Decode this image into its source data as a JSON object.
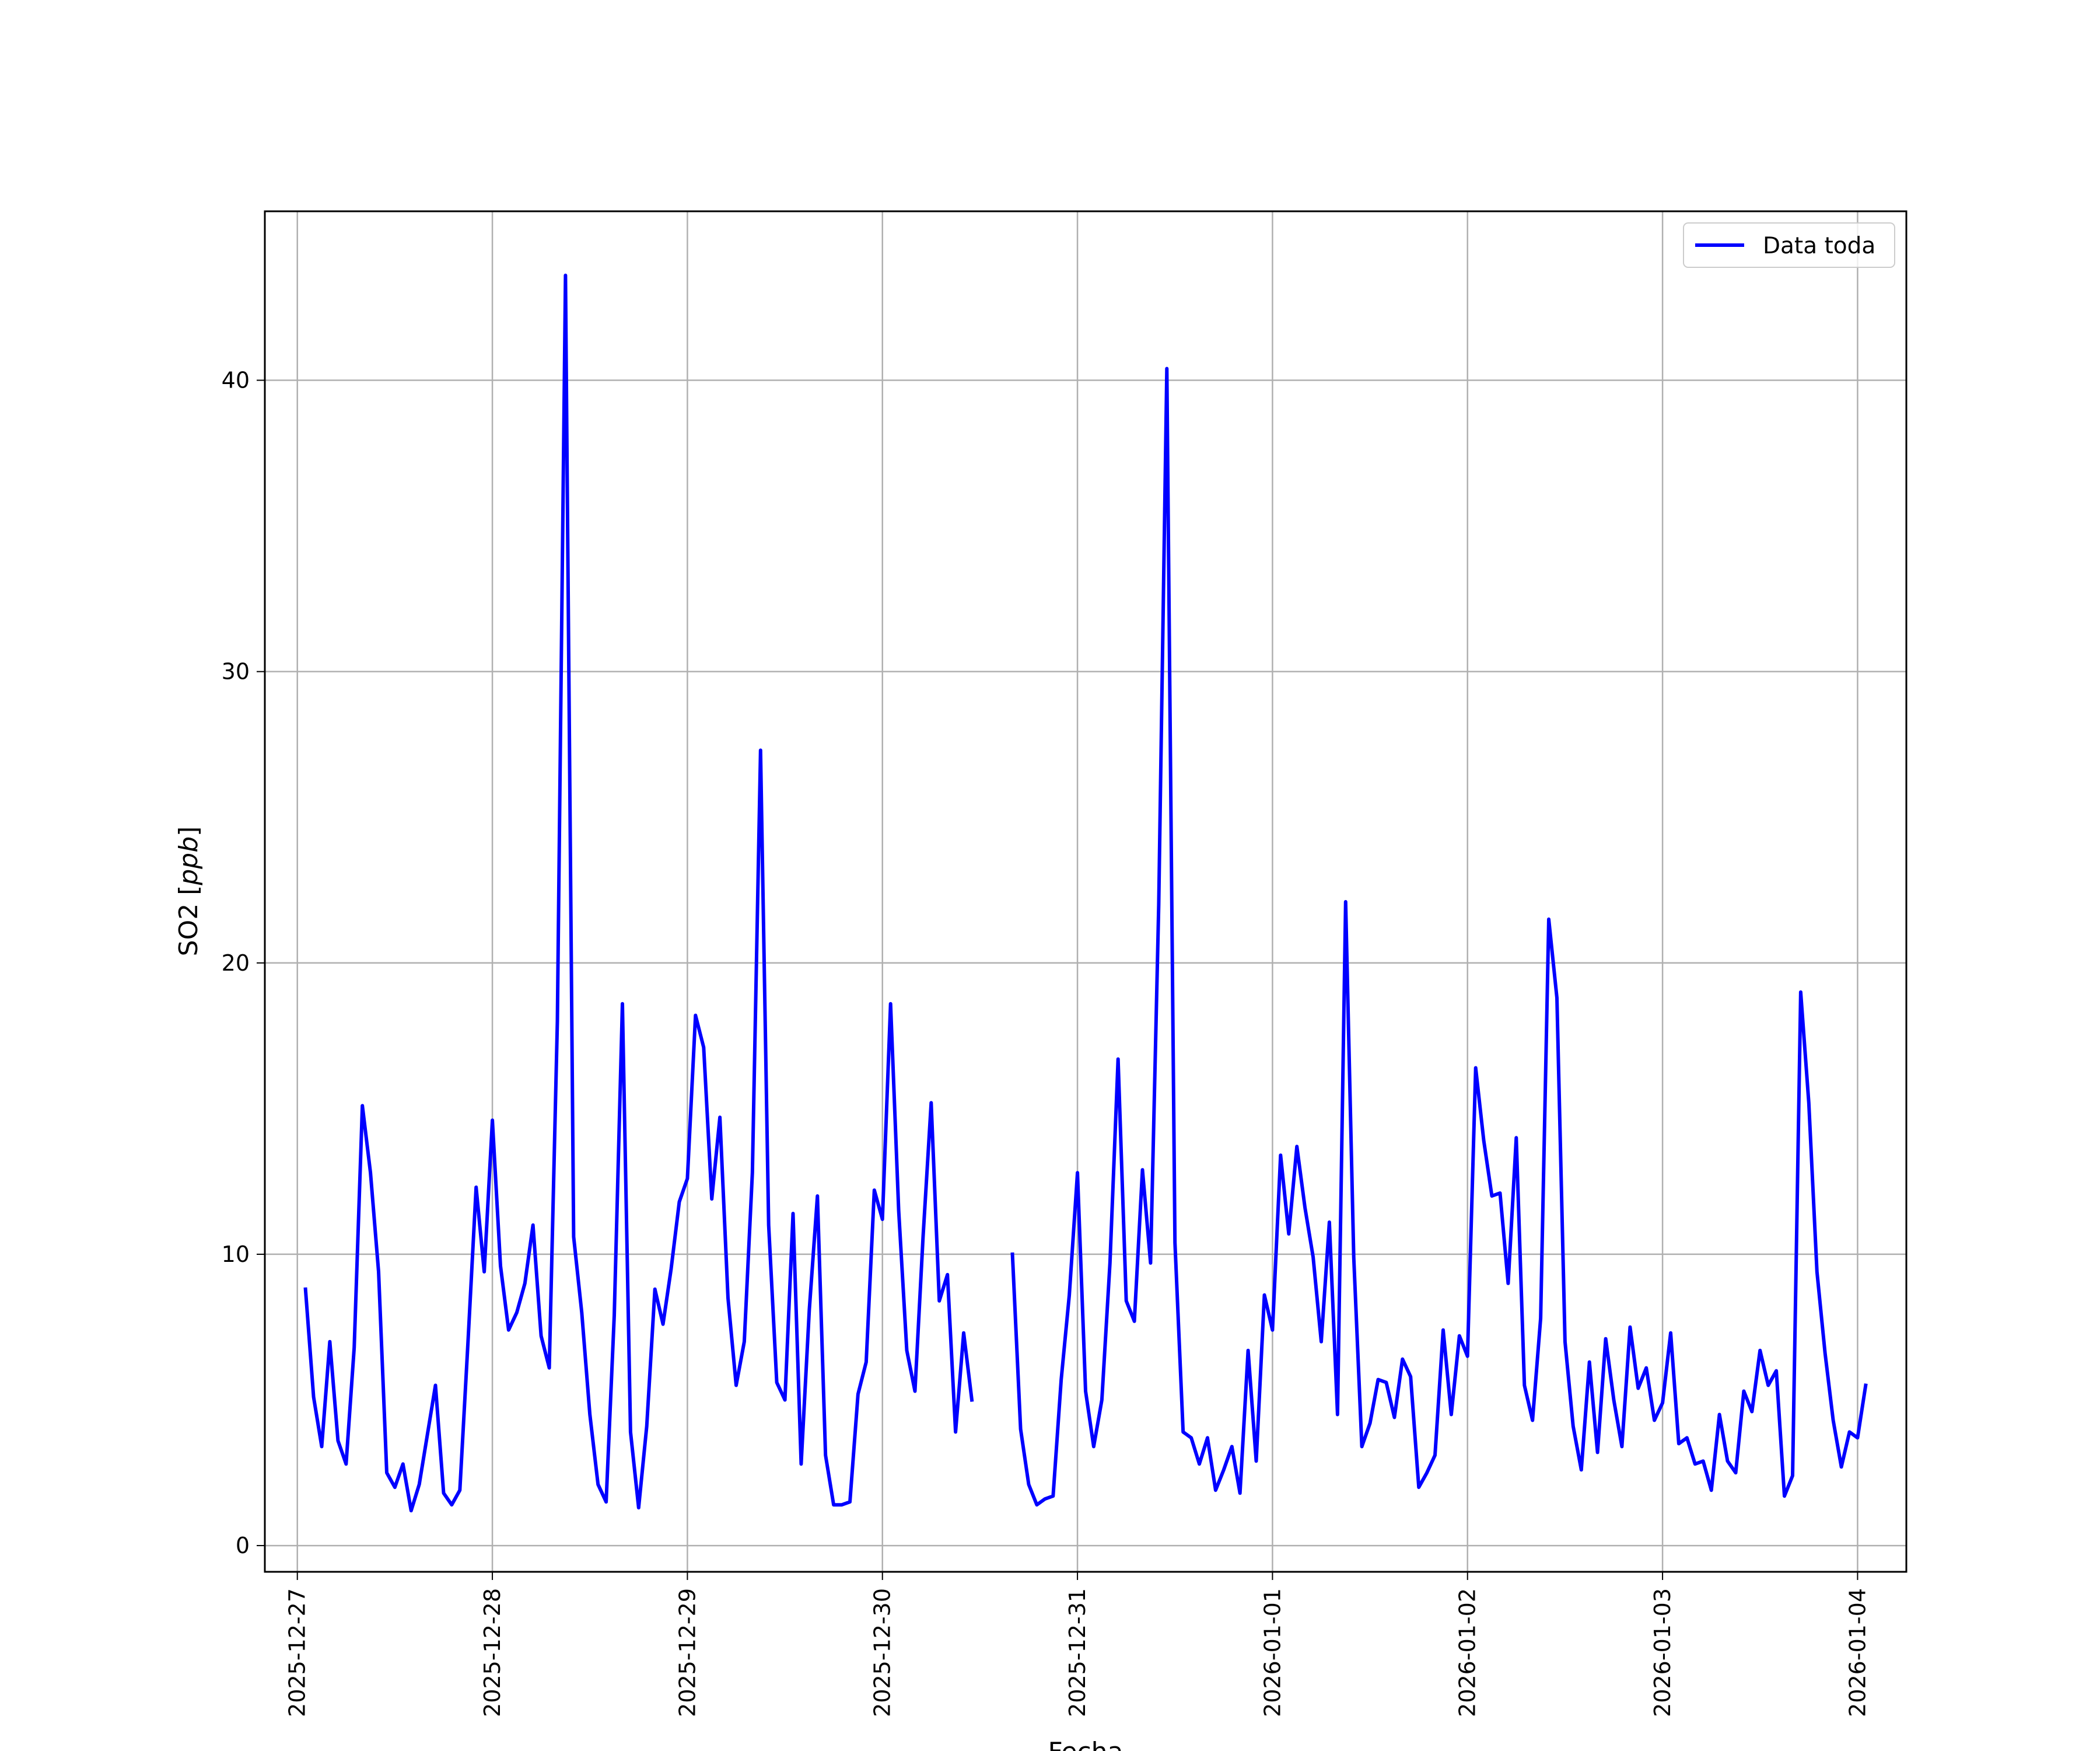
{
  "chart_data": {
    "type": "line",
    "title": "",
    "xlabel": "Fecha",
    "ylabel_prefix": "SO2 [",
    "ylabel_unit": "ppb",
    "ylabel_suffix": "]",
    "x_range": [
      "2025-12-26T20:00",
      "2026-01-04T06:00"
    ],
    "ylim": [
      -0.9,
      45.8
    ],
    "x_ticks": [
      "2025-12-27",
      "2025-12-28",
      "2025-12-29",
      "2025-12-30",
      "2025-12-31",
      "2026-01-01",
      "2026-01-02",
      "2026-01-03",
      "2026-01-04"
    ],
    "y_ticks": [
      0,
      10,
      20,
      30,
      40
    ],
    "grid": true,
    "legend_position": "top-right",
    "series": [
      {
        "name": "Data toda",
        "color": "#0000ff",
        "start": "2025-12-27T01:00",
        "interval_hours": 1,
        "values": [
          8.8,
          5.1,
          3.4,
          7.0,
          3.6,
          2.8,
          6.8,
          15.1,
          12.8,
          9.4,
          2.5,
          2.0,
          2.8,
          1.2,
          2.1,
          3.8,
          5.5,
          1.8,
          1.4,
          1.9,
          7.0,
          12.3,
          9.4,
          14.6,
          9.6,
          7.4,
          8.0,
          9.0,
          11.0,
          7.2,
          6.1,
          18.0,
          43.6,
          10.6,
          8.0,
          4.5,
          2.1,
          1.5,
          7.9,
          18.6,
          3.9,
          1.3,
          4.1,
          8.8,
          7.6,
          9.5,
          11.8,
          12.6,
          18.2,
          17.1,
          11.9,
          14.7,
          8.5,
          5.5,
          7.0,
          12.8,
          27.3,
          11.0,
          5.6,
          5.0,
          11.4,
          2.8,
          8.1,
          12.0,
          3.1,
          1.4,
          1.4,
          1.5,
          5.2,
          6.3,
          12.2,
          11.2,
          18.6,
          11.5,
          6.7,
          5.3,
          10.6,
          15.2,
          8.4,
          9.3,
          3.9,
          7.3,
          5.0,
          null,
          null,
          null,
          null,
          10.0,
          4.0,
          2.1,
          1.4,
          1.6,
          1.7,
          5.7,
          8.6,
          12.8,
          5.3,
          3.4,
          5.0,
          9.7,
          16.7,
          8.4,
          7.7,
          12.9,
          9.7,
          22.0,
          40.4,
          10.4,
          3.9,
          3.7,
          2.8,
          3.7,
          1.9,
          2.6,
          3.4,
          1.8,
          6.7,
          2.9,
          8.6,
          7.4,
          13.4,
          10.7,
          13.7,
          11.6,
          9.9,
          7.0,
          11.1,
          4.5,
          22.1,
          9.9,
          3.4,
          4.2,
          5.7,
          5.6,
          4.4,
          6.4,
          5.8,
          2.0,
          2.5,
          3.1,
          7.4,
          4.5,
          7.2,
          6.5,
          16.4,
          13.9,
          12.0,
          12.1,
          9.0,
          14.0,
          5.5,
          4.3,
          7.8,
          21.5,
          18.8,
          7.0,
          4.1,
          2.6,
          6.3,
          3.2,
          7.1,
          5.0,
          3.4,
          7.5,
          5.4,
          6.1,
          4.3,
          4.9,
          7.3,
          3.5,
          3.7,
          2.8,
          2.9,
          1.9,
          4.5,
          2.9,
          2.5,
          5.3,
          4.6,
          6.7,
          5.5,
          6.0,
          1.7,
          2.4,
          19.0,
          15.2,
          9.4,
          6.6,
          4.3,
          2.7,
          3.9,
          3.7,
          5.5
        ]
      }
    ]
  }
}
